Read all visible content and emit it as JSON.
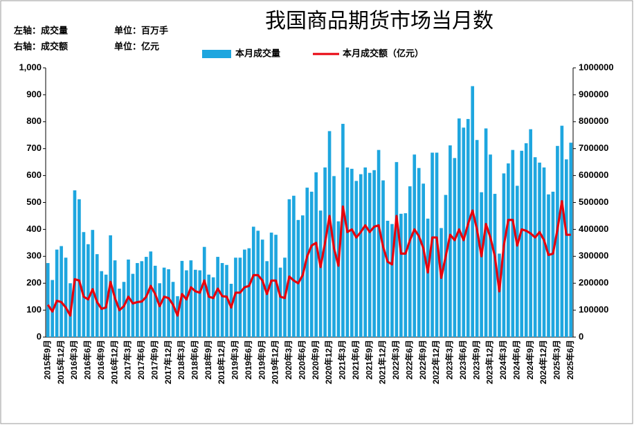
{
  "chart_data": {
    "type": "bar_line",
    "title": "我国商品期货市场当月数",
    "notes": [
      "左轴：成交量",
      "单位：百万手",
      "右轴：成交额",
      "单位：亿元"
    ],
    "categories": [
      "2015年9月",
      null,
      null,
      "2015年12月",
      null,
      null,
      "2016年3月",
      null,
      null,
      "2016年6月",
      null,
      null,
      "2016年9月",
      null,
      null,
      "2016年12月",
      null,
      null,
      "2017年3月",
      null,
      null,
      "2017年6月",
      null,
      null,
      "2017年9月",
      null,
      null,
      "2017年12月",
      null,
      null,
      "2018年3月",
      null,
      null,
      "2018年6月",
      null,
      null,
      "2018年9月",
      null,
      null,
      "2018年12月",
      null,
      null,
      "2019年3月",
      null,
      null,
      "2019年6月",
      null,
      null,
      "2019年9月",
      null,
      null,
      "2019年12月",
      null,
      null,
      "2020年3月",
      null,
      null,
      "2020年6月",
      null,
      null,
      "2020年9月",
      null,
      null,
      "2020年12月",
      null,
      null,
      "2021年3月",
      null,
      null,
      "2021年6月",
      null,
      null,
      "2021年9月",
      null,
      null,
      "2021年12月",
      null,
      null,
      "2022年3月",
      null,
      null,
      "2022年6月",
      null,
      null,
      "2022年9月",
      null,
      null,
      "2022年12月",
      null,
      null,
      "2023年3月",
      null,
      null,
      "2023年6月",
      null,
      null,
      "2023年9月",
      null,
      null,
      "2023年12月",
      null,
      null,
      "2024年3月",
      null,
      null,
      "2024年6月",
      null,
      null,
      "2024年9月",
      null,
      null,
      "2024年12月",
      null,
      null,
      "2025年3月",
      null,
      null,
      "2025年6月"
    ],
    "series": [
      {
        "name": "本月成交量",
        "color": "#1ea6df",
        "type": "bar",
        "values": [
          275,
          212,
          325,
          338,
          295,
          200,
          545,
          512,
          390,
          345,
          398,
          308,
          245,
          232,
          378,
          285,
          180,
          205,
          288,
          235,
          275,
          282,
          298,
          318,
          265,
          200,
          258,
          252,
          205,
          152,
          283,
          248,
          285,
          250,
          248,
          335,
          232,
          222,
          298,
          275,
          268,
          198,
          295,
          295,
          325,
          330,
          410,
          395,
          362,
          282,
          388,
          380,
          258,
          295,
          512,
          525,
          435,
          452,
          555,
          540,
          612,
          470,
          630,
          765,
          598,
          430,
          792,
          630,
          625,
          580,
          605,
          630,
          610,
          620,
          695,
          582,
          432,
          420,
          650,
          458,
          460,
          560,
          678,
          628,
          570,
          440,
          685,
          685,
          405,
          528,
          712,
          665,
          812,
          778,
          810,
          932,
          732,
          538,
          775,
          678,
          532,
          310,
          608,
          645,
          695,
          562,
          692,
          720,
          772,
          668,
          648,
          630,
          530,
          540,
          710,
          785,
          660,
          722
        ]
      },
      {
        "name": "本月成交额（亿元）",
        "color": "#e8000b",
        "type": "line",
        "axis": "y2",
        "values": [
          120000,
          95000,
          135000,
          130000,
          110000,
          80000,
          215000,
          210000,
          150000,
          140000,
          178000,
          130000,
          105000,
          110000,
          205000,
          145000,
          100000,
          115000,
          150000,
          125000,
          130000,
          132000,
          150000,
          190000,
          160000,
          115000,
          150000,
          145000,
          120000,
          80000,
          160000,
          140000,
          185000,
          170000,
          165000,
          210000,
          150000,
          145000,
          180000,
          152000,
          150000,
          110000,
          165000,
          165000,
          185000,
          190000,
          230000,
          230000,
          210000,
          160000,
          210000,
          210000,
          150000,
          145000,
          225000,
          210000,
          200000,
          230000,
          300000,
          340000,
          350000,
          260000,
          350000,
          450000,
          330000,
          265000,
          485000,
          390000,
          400000,
          370000,
          390000,
          415000,
          390000,
          410000,
          415000,
          335000,
          280000,
          270000,
          450000,
          310000,
          310000,
          360000,
          400000,
          375000,
          330000,
          240000,
          370000,
          370000,
          220000,
          300000,
          380000,
          360000,
          400000,
          360000,
          420000,
          470000,
          400000,
          300000,
          420000,
          370000,
          300000,
          170000,
          340000,
          435000,
          435000,
          340000,
          400000,
          395000,
          385000,
          370000,
          390000,
          360000,
          305000,
          310000,
          400000,
          505000,
          380000,
          380000
        ]
      }
    ],
    "ylim": [
      0,
      1000
    ],
    "yticks": [
      0,
      100,
      200,
      300,
      400,
      500,
      600,
      700,
      800,
      900,
      {
        "value": 1000,
        "label": "1,000"
      }
    ],
    "y2lim": [
      0,
      1000000
    ],
    "y2ticks": [
      0,
      100000,
      200000,
      300000,
      400000,
      500000,
      600000,
      700000,
      800000,
      900000,
      1000000
    ]
  }
}
